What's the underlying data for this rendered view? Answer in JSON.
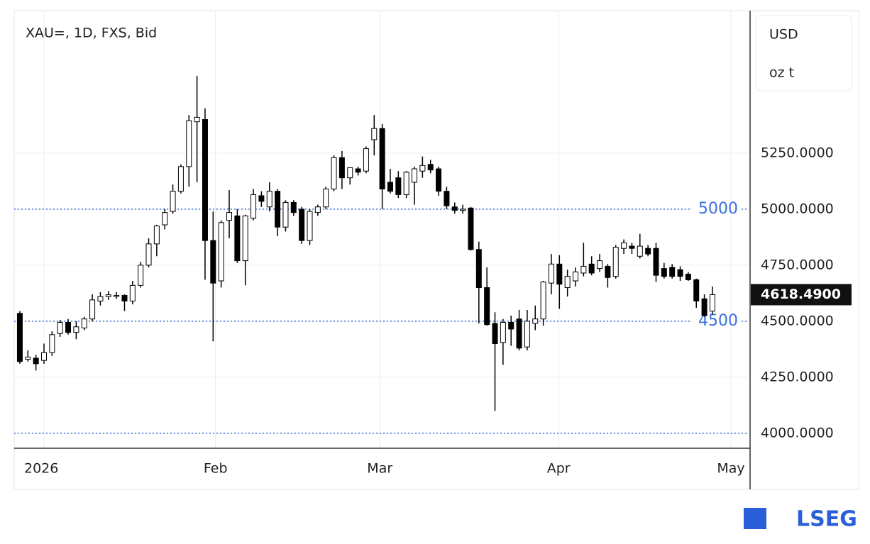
{
  "chart_data": {
    "type": "candlestick",
    "title": "XAU=, 1D, FXS, Bid",
    "units": [
      "USD",
      "oz t"
    ],
    "x": [
      0,
      1,
      2,
      3,
      4,
      5,
      6,
      7,
      8,
      9,
      10,
      11,
      12,
      13,
      14,
      15,
      16,
      17,
      18,
      19,
      20,
      21,
      22,
      23,
      24,
      25,
      26,
      27,
      28,
      29,
      30,
      31,
      32,
      33,
      34,
      35,
      36,
      37,
      38,
      39,
      40,
      41,
      42,
      43,
      44,
      45,
      46,
      47,
      48,
      49,
      50,
      51,
      52,
      53,
      54,
      55,
      56,
      57,
      58,
      59,
      60,
      61,
      62,
      63,
      64,
      65,
      66,
      67,
      68,
      69,
      70,
      71,
      72,
      73,
      74,
      75,
      76,
      77,
      78,
      79,
      80,
      81,
      82,
      83,
      84,
      85,
      86
    ],
    "open": [
      4535,
      4330,
      4335,
      4325,
      4360,
      4445,
      4495,
      4450,
      4470,
      4510,
      4590,
      4610,
      4612,
      4615,
      4590,
      4660,
      4750,
      4845,
      4930,
      4990,
      5080,
      5190,
      5390,
      5400,
      4860,
      4680,
      4950,
      4970,
      4770,
      4960,
      5060,
      5010,
      5080,
      4920,
      5030,
      5000,
      4860,
      4985,
      5010,
      5090,
      5230,
      5140,
      5180,
      5170,
      5310,
      5360,
      5120,
      5140,
      5065,
      5120,
      5170,
      5200,
      5180,
      5080,
      5010,
      4995,
      5005,
      4820,
      4650,
      4490,
      4405,
      4495,
      4510,
      4385,
      4490,
      4510,
      4670,
      4755,
      4650,
      4680,
      4715,
      4755,
      4735,
      4745,
      4700,
      4825,
      4835,
      4790,
      4825,
      4825,
      4735,
      4740,
      4730,
      4710,
      4685,
      4600,
      4545
    ],
    "high": [
      4545,
      4370,
      4350,
      4400,
      4455,
      4505,
      4510,
      4500,
      4520,
      4620,
      4630,
      4635,
      4630,
      4620,
      4680,
      4765,
      4870,
      4930,
      5000,
      5110,
      5200,
      5420,
      5595,
      5450,
      4990,
      4950,
      5085,
      5000,
      4975,
      5090,
      5080,
      5120,
      5090,
      5040,
      5040,
      5010,
      5000,
      5020,
      5100,
      5240,
      5260,
      5180,
      5190,
      5280,
      5420,
      5380,
      5180,
      5170,
      5170,
      5190,
      5235,
      5220,
      5190,
      5100,
      5030,
      5020,
      5010,
      4855,
      4740,
      4540,
      4510,
      4525,
      4550,
      4550,
      4570,
      4680,
      4800,
      4795,
      4730,
      4740,
      4850,
      4790,
      4800,
      4755,
      4840,
      4865,
      4850,
      4890,
      4840,
      4850,
      4760,
      4755,
      4745,
      4720,
      4690,
      4620,
      4655
    ],
    "low": [
      4310,
      4320,
      4280,
      4310,
      4345,
      4430,
      4440,
      4420,
      4460,
      4500,
      4570,
      4595,
      4600,
      4545,
      4575,
      4650,
      4740,
      4790,
      4910,
      4980,
      5070,
      5100,
      5120,
      4685,
      4410,
      4650,
      4870,
      4760,
      4660,
      4950,
      5010,
      4990,
      4880,
      4900,
      4970,
      4845,
      4840,
      4970,
      5000,
      5080,
      5090,
      5110,
      5150,
      5160,
      5240,
      5000,
      5070,
      5050,
      5050,
      5020,
      5140,
      5160,
      5060,
      5000,
      4980,
      4980,
      4815,
      4490,
      4480,
      4100,
      4305,
      4390,
      4370,
      4370,
      4460,
      4480,
      4620,
      4555,
      4610,
      4655,
      4700,
      4705,
      4720,
      4650,
      4690,
      4800,
      4800,
      4780,
      4790,
      4675,
      4690,
      4690,
      4680,
      4680,
      4560,
      4520,
      4530
    ],
    "close": [
      4320,
      4340,
      4310,
      4360,
      4440,
      4495,
      4450,
      4475,
      4510,
      4595,
      4610,
      4618,
      4615,
      4590,
      4660,
      4750,
      4845,
      4925,
      4985,
      5080,
      5190,
      5395,
      5410,
      4860,
      4670,
      4940,
      4985,
      4770,
      4970,
      5065,
      5035,
      5080,
      4920,
      5030,
      4985,
      4860,
      4990,
      5010,
      5090,
      5230,
      5140,
      5185,
      5165,
      5270,
      5360,
      5090,
      5080,
      5065,
      5165,
      5180,
      5195,
      5175,
      5080,
      5015,
      4995,
      5000,
      4820,
      4650,
      4485,
      4400,
      4495,
      4465,
      4380,
      4500,
      4510,
      4675,
      4755,
      4665,
      4700,
      4720,
      4745,
      4715,
      4770,
      4695,
      4830,
      4850,
      4825,
      4835,
      4800,
      4705,
      4700,
      4700,
      4700,
      4685,
      4590,
      4525,
      4618.49
    ],
    "up_color": "#ffffff",
    "down_color": "#000000",
    "edge_color": "#000000",
    "xlim": [
      -0.7,
      90.5
    ],
    "xticks": [
      {
        "value": 3,
        "label": "2026"
      },
      {
        "value": 24.3,
        "label": "Feb"
      },
      {
        "value": 44.7,
        "label": "Mar"
      },
      {
        "value": 66.9,
        "label": "Apr"
      },
      {
        "value": 88.3,
        "label": "May"
      }
    ],
    "ylim": [
      3933,
      5886
    ],
    "yticks": [
      {
        "value": 4000,
        "label": "4000.0000"
      },
      {
        "value": 4250,
        "label": "4250.0000"
      },
      {
        "value": 4500,
        "label": "4500.0000"
      },
      {
        "value": 4750,
        "label": "4750.0000"
      },
      {
        "value": 5000,
        "label": "5000.0000"
      },
      {
        "value": 5250,
        "label": "5250.0000"
      }
    ],
    "reference_lines": [
      {
        "value": 5000,
        "label": "5000"
      },
      {
        "value": 4500,
        "label": "4500"
      },
      {
        "value": 4000
      }
    ],
    "reference_color": "#3b6fe0",
    "last_price": {
      "value": 4618.49,
      "label": "4618.4900"
    },
    "grid": true
  },
  "logo": "LSEG"
}
